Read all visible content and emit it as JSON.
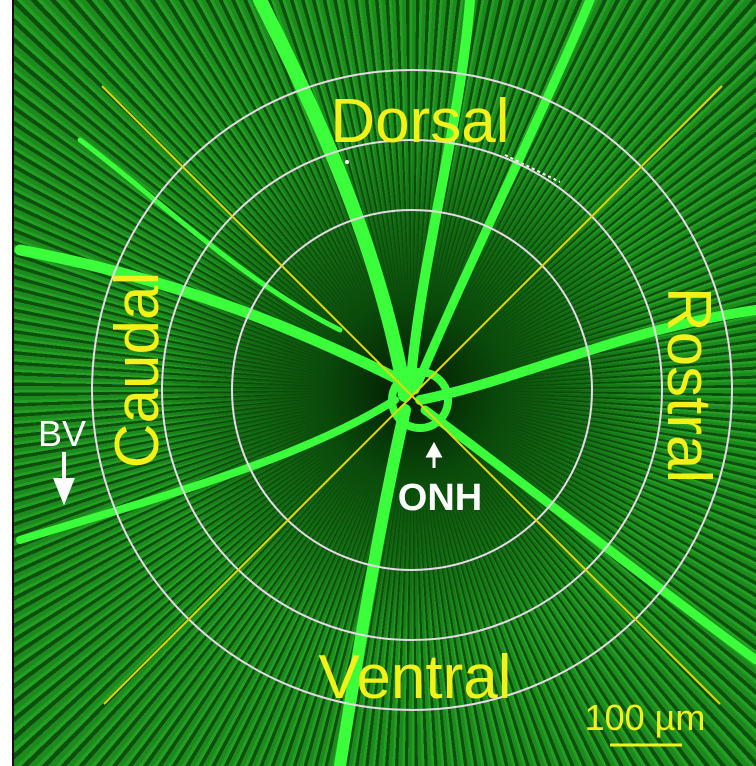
{
  "image": {
    "labels": {
      "dorsal": "Dorsal",
      "ventral": "Ventral",
      "caudal": "Caudal",
      "rostral": "Rostral",
      "bv": "BV",
      "onh": "ONH",
      "scale_bar": "100 µm"
    }
  }
}
